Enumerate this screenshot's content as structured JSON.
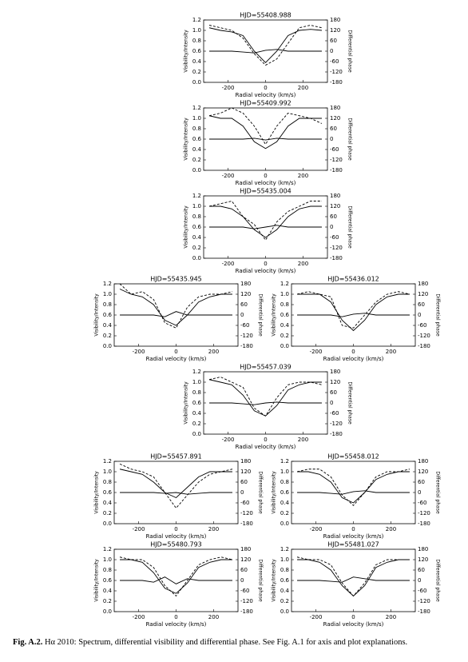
{
  "chart_data": [
    {
      "type": "line",
      "title": "HJD=55408.988",
      "xlabel": "Radial velocity (km/s)",
      "ylabel": "Visibility/Intensity",
      "y2label": "Differential phase",
      "x": [
        -300,
        -240,
        -180,
        -120,
        -60,
        0,
        60,
        120,
        180,
        240,
        300
      ],
      "xlim": [
        -330,
        330
      ],
      "xticks": [
        -200,
        0,
        200
      ],
      "ylim": [
        0,
        1.2
      ],
      "yticks": [
        {
          "value": 0,
          "label": "0.0"
        },
        0.2,
        0.4,
        0.6,
        0.8,
        {
          "value": 1,
          "label": "1.0"
        },
        1.2
      ],
      "y2lim": [
        -180,
        180
      ],
      "y2ticks": [
        -180,
        -120,
        -60,
        0,
        60,
        120,
        180
      ],
      "series": [
        {
          "color": "#000",
          "style": "solid",
          "values": [
            1.05,
            1.0,
            0.97,
            0.9,
            0.6,
            0.38,
            0.6,
            0.9,
            1.0,
            1.02,
            1.0
          ]
        },
        {
          "color": "#000",
          "style": "dashed",
          "values": [
            1.1,
            1.05,
            1.0,
            0.85,
            0.55,
            0.33,
            0.45,
            0.75,
            1.05,
            1.1,
            1.05
          ]
        },
        {
          "color": "#000",
          "style": "solid",
          "axis": "y2",
          "values": [
            0,
            0,
            0,
            -5,
            -10,
            5,
            10,
            0,
            0,
            0,
            0
          ]
        }
      ]
    },
    {
      "type": "line",
      "title": "HJD=55409.992",
      "xlabel": "Radial velocity (km/s)",
      "ylabel": "Visibility/Intensity",
      "y2label": "Differential phase",
      "x": [
        -300,
        -240,
        -180,
        -120,
        -60,
        0,
        60,
        120,
        180,
        240,
        300
      ],
      "xlim": [
        -330,
        330
      ],
      "xticks": [
        -200,
        0,
        200
      ],
      "ylim": [
        0,
        1.2
      ],
      "yticks": [
        {
          "value": 0,
          "label": "0.0"
        },
        0.2,
        0.4,
        0.6,
        0.8,
        {
          "value": 1,
          "label": "1.0"
        },
        1.2
      ],
      "y2lim": [
        -180,
        180
      ],
      "y2ticks": [
        -180,
        -120,
        -60,
        0,
        60,
        120,
        180
      ],
      "series": [
        {
          "color": "#000",
          "style": "solid",
          "values": [
            1.05,
            1.0,
            1.0,
            0.85,
            0.55,
            0.42,
            0.55,
            0.85,
            1.0,
            1.0,
            1.0
          ]
        },
        {
          "color": "#000",
          "style": "dashed",
          "values": [
            1.05,
            1.1,
            1.2,
            1.1,
            0.85,
            0.5,
            0.85,
            1.1,
            1.05,
            1.0,
            0.9
          ]
        },
        {
          "color": "#000",
          "style": "solid",
          "axis": "y2",
          "values": [
            0,
            0,
            0,
            0,
            5,
            -5,
            5,
            0,
            0,
            0,
            0
          ]
        }
      ]
    },
    {
      "type": "line",
      "title": "HJD=55435.004",
      "xlabel": "Radial velocity (km/s)",
      "ylabel": "Visibility/Intensity",
      "y2label": "Differential phase",
      "x": [
        -300,
        -240,
        -180,
        -120,
        -60,
        0,
        60,
        120,
        180,
        240,
        300
      ],
      "xlim": [
        -330,
        330
      ],
      "xticks": [
        -200,
        0,
        200
      ],
      "ylim": [
        0,
        1.2
      ],
      "yticks": [
        {
          "value": 0,
          "label": "0.0"
        },
        0.2,
        0.4,
        0.6,
        0.8,
        {
          "value": 1,
          "label": "1.0"
        },
        1.2
      ],
      "y2lim": [
        -180,
        180
      ],
      "y2ticks": [
        -180,
        -120,
        -60,
        0,
        60,
        120,
        180
      ],
      "series": [
        {
          "color": "#000",
          "style": "solid",
          "values": [
            1.0,
            1.0,
            0.95,
            0.8,
            0.55,
            0.4,
            0.55,
            0.8,
            0.95,
            1.0,
            1.0
          ]
        },
        {
          "color": "#000",
          "style": "dashed",
          "values": [
            1.0,
            1.05,
            1.1,
            0.8,
            0.65,
            0.35,
            0.7,
            0.9,
            1.0,
            1.1,
            1.1
          ]
        },
        {
          "color": "#000",
          "style": "solid",
          "axis": "y2",
          "values": [
            0,
            0,
            0,
            0,
            -10,
            0,
            10,
            0,
            0,
            0,
            0
          ]
        }
      ]
    },
    {
      "type": "line",
      "title": "HJD=55435.945",
      "xlabel": "Radial velocity (km/s)",
      "ylabel": "Visibility/Intensity",
      "y2label": "Differential phase",
      "x": [
        -300,
        -240,
        -180,
        -120,
        -60,
        0,
        60,
        120,
        180,
        240,
        300
      ],
      "xlim": [
        -330,
        330
      ],
      "xticks": [
        -200,
        0,
        200
      ],
      "ylim": [
        0,
        1.2
      ],
      "yticks": [
        {
          "value": 0,
          "label": "0.0"
        },
        0.2,
        0.4,
        0.6,
        0.8,
        {
          "value": 1,
          "label": "1.0"
        },
        1.2
      ],
      "y2lim": [
        -180,
        180
      ],
      "y2ticks": [
        -180,
        -120,
        -60,
        0,
        60,
        120,
        180
      ],
      "series": [
        {
          "color": "#000",
          "style": "solid",
          "values": [
            1.1,
            1.0,
            0.95,
            0.8,
            0.5,
            0.4,
            0.6,
            0.85,
            0.95,
            1.0,
            1.0
          ]
        },
        {
          "color": "#000",
          "style": "dashed",
          "values": [
            1.2,
            1.0,
            1.05,
            0.9,
            0.45,
            0.35,
            0.75,
            0.95,
            1.0,
            1.0,
            1.05
          ]
        },
        {
          "color": "#000",
          "style": "solid",
          "axis": "y2",
          "values": [
            0,
            0,
            0,
            0,
            -10,
            20,
            0,
            0,
            0,
            0,
            0
          ]
        }
      ]
    },
    {
      "type": "line",
      "title": "HJD=55436.012",
      "xlabel": "Radial velocity (km/s)",
      "ylabel": "Visibility/Intensity",
      "y2label": "Differential phase",
      "x": [
        -300,
        -240,
        -180,
        -120,
        -60,
        0,
        60,
        120,
        180,
        240,
        300
      ],
      "xlim": [
        -330,
        330
      ],
      "xticks": [
        -200,
        0,
        200
      ],
      "ylim": [
        0,
        1.2
      ],
      "yticks": [
        {
          "value": 0,
          "label": "0.0"
        },
        0.2,
        0.4,
        0.6,
        0.8,
        {
          "value": 1,
          "label": "1.0"
        },
        1.2
      ],
      "y2lim": [
        -180,
        180
      ],
      "y2ticks": [
        -180,
        -120,
        -60,
        0,
        60,
        120,
        180
      ],
      "series": [
        {
          "color": "#000",
          "style": "solid",
          "values": [
            1.0,
            1.0,
            1.0,
            0.85,
            0.5,
            0.3,
            0.5,
            0.8,
            0.95,
            1.0,
            1.0
          ]
        },
        {
          "color": "#000",
          "style": "dashed",
          "values": [
            1.0,
            1.05,
            1.0,
            0.95,
            0.4,
            0.35,
            0.6,
            0.85,
            1.0,
            1.05,
            1.0
          ]
        },
        {
          "color": "#000",
          "style": "solid",
          "axis": "y2",
          "values": [
            0,
            0,
            0,
            0,
            -10,
            5,
            10,
            0,
            0,
            0,
            0
          ]
        }
      ]
    },
    {
      "type": "line",
      "title": "HJD=55457.039",
      "xlabel": "Radial velocity (km/s)",
      "ylabel": "Visibility/Intensity",
      "y2label": "Differential phase",
      "x": [
        -300,
        -240,
        -180,
        -120,
        -60,
        0,
        60,
        120,
        180,
        240,
        300
      ],
      "xlim": [
        -330,
        330
      ],
      "xticks": [
        -200,
        0,
        200
      ],
      "ylim": [
        0,
        1.2
      ],
      "yticks": [
        {
          "value": 0,
          "label": "0.0"
        },
        0.2,
        0.4,
        0.6,
        0.8,
        {
          "value": 1,
          "label": "1.0"
        },
        1.2
      ],
      "y2lim": [
        -180,
        180
      ],
      "y2ticks": [
        -180,
        -120,
        -60,
        0,
        60,
        120,
        180
      ],
      "series": [
        {
          "color": "#000",
          "style": "solid",
          "values": [
            1.05,
            1.0,
            0.95,
            0.75,
            0.45,
            0.35,
            0.55,
            0.85,
            0.95,
            1.0,
            1.0
          ]
        },
        {
          "color": "#000",
          "style": "dashed",
          "values": [
            1.05,
            1.1,
            1.0,
            0.9,
            0.5,
            0.35,
            0.7,
            0.95,
            1.0,
            1.0,
            0.95
          ]
        },
        {
          "color": "#000",
          "style": "solid",
          "axis": "y2",
          "values": [
            0,
            0,
            0,
            -5,
            -10,
            0,
            5,
            0,
            0,
            0,
            0
          ]
        }
      ]
    },
    {
      "type": "line",
      "title": "HJD=55457.891",
      "xlabel": "Radial velocity (km/s)",
      "ylabel": "Visibility/Intensity",
      "y2label": "Differential phase",
      "x": [
        -300,
        -240,
        -180,
        -120,
        -60,
        0,
        60,
        120,
        180,
        240,
        300
      ],
      "xlim": [
        -330,
        330
      ],
      "xticks": [
        -200,
        0,
        200
      ],
      "ylim": [
        0,
        1.2
      ],
      "yticks": [
        {
          "value": 0,
          "label": "0.0"
        },
        0.2,
        0.4,
        0.6,
        0.8,
        {
          "value": 1,
          "label": "1.0"
        },
        1.2
      ],
      "y2lim": [
        -180,
        180
      ],
      "y2ticks": [
        -180,
        -120,
        -60,
        0,
        60,
        120,
        180
      ],
      "series": [
        {
          "color": "#000",
          "style": "solid",
          "values": [
            1.05,
            1.0,
            0.95,
            0.8,
            0.6,
            0.5,
            0.7,
            0.9,
            1.0,
            1.0,
            1.0
          ]
        },
        {
          "color": "#000",
          "style": "dashed",
          "values": [
            1.15,
            1.05,
            1.0,
            0.9,
            0.6,
            0.3,
            0.55,
            0.8,
            0.95,
            1.0,
            1.05
          ]
        },
        {
          "color": "#000",
          "style": "solid",
          "axis": "y2",
          "values": [
            0,
            0,
            0,
            0,
            -5,
            0,
            -10,
            -5,
            0,
            0,
            0
          ]
        }
      ]
    },
    {
      "type": "line",
      "title": "HJD=55458.012",
      "xlabel": "Radial velocity (km/s)",
      "ylabel": "Visibility/Intensity",
      "y2label": "Differential phase",
      "x": [
        -300,
        -240,
        -180,
        -120,
        -60,
        0,
        60,
        120,
        180,
        240,
        300
      ],
      "xlim": [
        -330,
        330
      ],
      "xticks": [
        -200,
        0,
        200
      ],
      "ylim": [
        0,
        1.2
      ],
      "yticks": [
        {
          "value": 0,
          "label": "0.0"
        },
        0.2,
        0.4,
        0.6,
        0.8,
        {
          "value": 1,
          "label": "1.0"
        },
        1.2
      ],
      "y2lim": [
        -180,
        180
      ],
      "y2ticks": [
        -180,
        -120,
        -60,
        0,
        60,
        120,
        180
      ],
      "series": [
        {
          "color": "#000",
          "style": "solid",
          "values": [
            1.0,
            1.0,
            0.95,
            0.8,
            0.5,
            0.4,
            0.6,
            0.85,
            0.95,
            1.0,
            1.0
          ]
        },
        {
          "color": "#000",
          "style": "dashed",
          "values": [
            1.0,
            1.05,
            1.05,
            0.9,
            0.55,
            0.35,
            0.6,
            0.9,
            1.0,
            1.0,
            1.05
          ]
        },
        {
          "color": "#000",
          "style": "solid",
          "axis": "y2",
          "values": [
            0,
            0,
            0,
            -5,
            -10,
            5,
            10,
            0,
            0,
            0,
            0
          ]
        }
      ]
    },
    {
      "type": "line",
      "title": "HJD=55480.793",
      "xlabel": "Radial velocity (km/s)",
      "ylabel": "Visibility/Intensity",
      "y2label": "Differential phase",
      "x": [
        -300,
        -240,
        -180,
        -120,
        -60,
        0,
        60,
        120,
        180,
        240,
        300
      ],
      "xlim": [
        -330,
        330
      ],
      "xticks": [
        -200,
        0,
        200
      ],
      "ylim": [
        0,
        1.2
      ],
      "yticks": [
        {
          "value": 0,
          "label": "0.0"
        },
        0.2,
        0.4,
        0.6,
        0.8,
        {
          "value": 1,
          "label": "1.0"
        },
        1.2
      ],
      "y2lim": [
        -180,
        180
      ],
      "y2ticks": [
        -180,
        -120,
        -60,
        0,
        60,
        120,
        180
      ],
      "series": [
        {
          "color": "#000",
          "style": "solid",
          "values": [
            1.0,
            1.0,
            0.95,
            0.75,
            0.45,
            0.35,
            0.55,
            0.85,
            0.95,
            1.0,
            1.0
          ]
        },
        {
          "color": "#000",
          "style": "dashed",
          "values": [
            1.05,
            1.0,
            1.0,
            0.85,
            0.5,
            0.3,
            0.6,
            0.9,
            1.0,
            1.05,
            1.0
          ]
        },
        {
          "color": "#000",
          "style": "solid",
          "axis": "y2",
          "values": [
            0,
            0,
            0,
            -10,
            20,
            -20,
            10,
            0,
            0,
            0,
            0
          ]
        }
      ]
    },
    {
      "type": "line",
      "title": "HJD=55481.027",
      "xlabel": "Radial velocity (km/s)",
      "ylabel": "Visibility/Intensity",
      "y2label": "Differential phase",
      "x": [
        -300,
        -240,
        -180,
        -120,
        -60,
        0,
        60,
        120,
        180,
        240,
        300
      ],
      "xlim": [
        -330,
        330
      ],
      "xticks": [
        -200,
        0,
        200
      ],
      "ylim": [
        0,
        1.2
      ],
      "yticks": [
        {
          "value": 0,
          "label": "0.0"
        },
        0.2,
        0.4,
        0.6,
        0.8,
        {
          "value": 1,
          "label": "1.0"
        },
        1.2
      ],
      "y2lim": [
        -180,
        180
      ],
      "y2ticks": [
        -180,
        -120,
        -60,
        0,
        60,
        120,
        180
      ],
      "series": [
        {
          "color": "#000",
          "style": "solid",
          "values": [
            1.0,
            1.0,
            0.95,
            0.8,
            0.5,
            0.3,
            0.5,
            0.85,
            0.95,
            1.0,
            1.0
          ]
        },
        {
          "color": "#000",
          "style": "dashed",
          "values": [
            1.05,
            1.0,
            1.0,
            0.9,
            0.55,
            0.3,
            0.55,
            0.9,
            1.0,
            1.0,
            1.0
          ]
        },
        {
          "color": "#000",
          "style": "solid",
          "axis": "y2",
          "values": [
            0,
            0,
            0,
            -5,
            -10,
            20,
            10,
            0,
            0,
            0,
            0
          ]
        }
      ]
    }
  ],
  "caption": {
    "label": "Fig. A.2.",
    "text": "Hα 2010: Spectrum, differential visibility and differential phase. See Fig. A.1 for axis and plot explanations."
  }
}
